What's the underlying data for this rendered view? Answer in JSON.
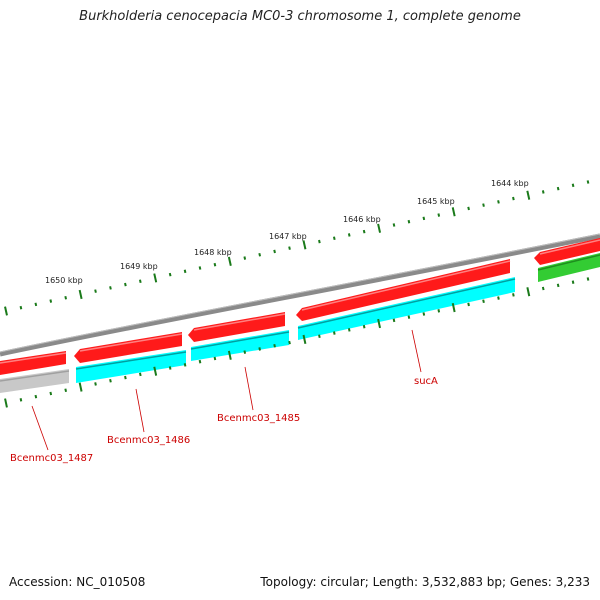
{
  "title": "Burkholderia cenocepacia MC0-3 chromosome 1, complete genome",
  "footer": {
    "accession": "Accession: NC_010508",
    "topology": "Topology: circular; Length: 3,532,883 bp; Genes: 3,233"
  },
  "ruler": {
    "labels": [
      "1650 kbp",
      "1649 kbp",
      "1648 kbp",
      "1647 kbp",
      "1646 kbp",
      "1645 kbp",
      "1644 kbp"
    ]
  },
  "gene_labels": [
    "Bcenmc03_1487",
    "Bcenmc03_1486",
    "Bcenmc03_1485",
    "sucA"
  ],
  "colors": {
    "backbone": "#888888",
    "forward_gene": "#ff0000",
    "cds": "#00ffff",
    "other_gene": "#33cc33",
    "pseudo": "#c8c8c8",
    "ruler": "#1a7a1a",
    "label": "#cc0000"
  }
}
